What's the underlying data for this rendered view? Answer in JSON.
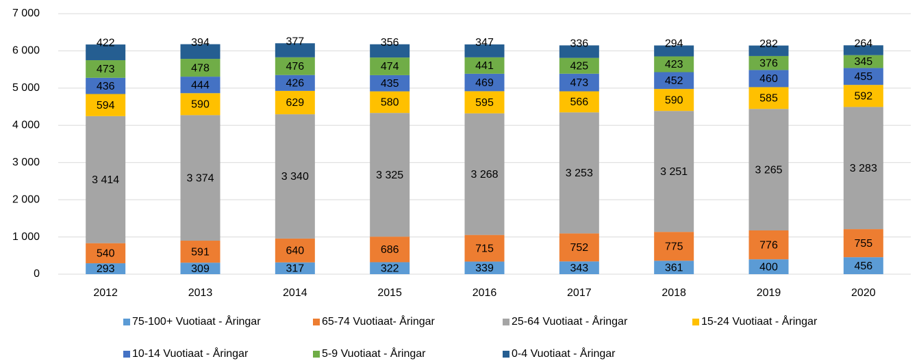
{
  "chart_data": {
    "type": "stacked_bar",
    "categories": [
      "2012",
      "2013",
      "2014",
      "2015",
      "2016",
      "2017",
      "2018",
      "2019",
      "2020"
    ],
    "series": [
      {
        "name": "75-100+ Vuotiaat - Åringar",
        "color": "#5b9bd5",
        "values": [
          293,
          309,
          317,
          322,
          339,
          343,
          361,
          400,
          456
        ]
      },
      {
        "name": "65-74 Vuotiaat- Åringar",
        "color": "#ed7d31",
        "values": [
          540,
          591,
          640,
          686,
          715,
          752,
          775,
          776,
          755
        ]
      },
      {
        "name": "25-64 Vuotiaat - Åringar",
        "color": "#a5a5a5",
        "values": [
          3414,
          3374,
          3340,
          3325,
          3268,
          3253,
          3251,
          3265,
          3283
        ],
        "value_labels": [
          "3 414",
          "3 374",
          "3 340",
          "3 325",
          "3 268",
          "3 253",
          "3 251",
          "3 265",
          "3 283"
        ]
      },
      {
        "name": "15-24 Vuotiaat - Åringar",
        "color": "#ffc000",
        "values": [
          594,
          590,
          629,
          580,
          595,
          566,
          590,
          585,
          592
        ]
      },
      {
        "name": "10-14 Vuotiaat - Åringar",
        "color": "#4472c4",
        "values": [
          436,
          444,
          426,
          435,
          469,
          473,
          452,
          460,
          455
        ]
      },
      {
        "name": "5-9 Vuotiaat - Åringar",
        "color": "#70ad47",
        "values": [
          473,
          478,
          476,
          474,
          441,
          425,
          423,
          376,
          345
        ]
      },
      {
        "name": "0-4 Vuotiaat - Åringar",
        "color": "#255e91",
        "values": [
          422,
          394,
          377,
          356,
          347,
          336,
          294,
          282,
          264
        ]
      }
    ],
    "ylim": [
      0,
      7000
    ],
    "yticks": [
      0,
      {
        "value": 1000,
        "label": "1 000"
      },
      {
        "value": 2000,
        "label": "2 000"
      },
      {
        "value": 3000,
        "label": "3 000"
      },
      {
        "value": 4000,
        "label": "4 000"
      },
      {
        "value": 5000,
        "label": "5 000"
      },
      {
        "value": 6000,
        "label": "6 000"
      },
      {
        "value": 7000,
        "label": "7 000"
      }
    ],
    "grid": true,
    "legend": "bottom"
  }
}
